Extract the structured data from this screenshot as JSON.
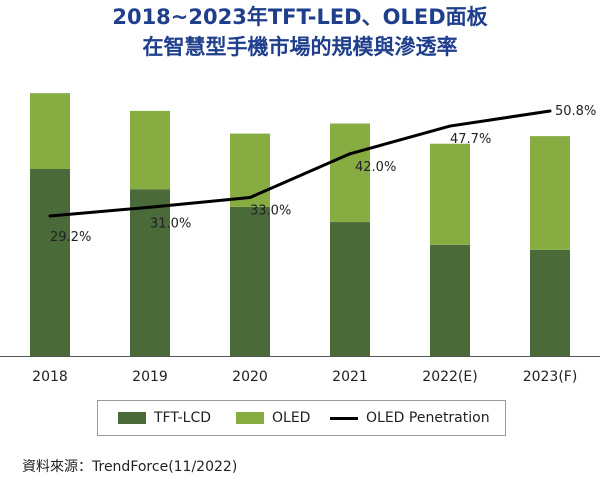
{
  "title_line1": "2018~2023年TFT-LED、OLED面板",
  "title_line2": "在智慧型手機市場的規模與滲透率",
  "chart_data": {
    "type": "bar",
    "stacked": true,
    "categories": [
      "2018",
      "2019",
      "2020",
      "2021",
      "2022(E)",
      "2023(F)"
    ],
    "series": [
      {
        "name": "TFT-LCD",
        "values": [
          74,
          66,
          59,
          53,
          44,
          42
        ],
        "color": "#4a6b39"
      },
      {
        "name": "OLED",
        "values": [
          30,
          31,
          29,
          39,
          40,
          45
        ],
        "color": "#86ac42"
      }
    ],
    "ylim": [
      0,
      110
    ],
    "line_series": {
      "name": "OLED Penetration",
      "values": [
        29.2,
        31.0,
        33.0,
        42.0,
        47.7,
        50.8
      ],
      "labels": [
        "29.2%",
        "31.0%",
        "33.0%",
        "42.0%",
        "47.7%",
        "50.8%"
      ],
      "color": "#000000",
      "ylim": [
        18,
        55
      ]
    },
    "grid": false,
    "legend_position": "bottom"
  },
  "source": "資料來源：TrendForce(11/2022)"
}
